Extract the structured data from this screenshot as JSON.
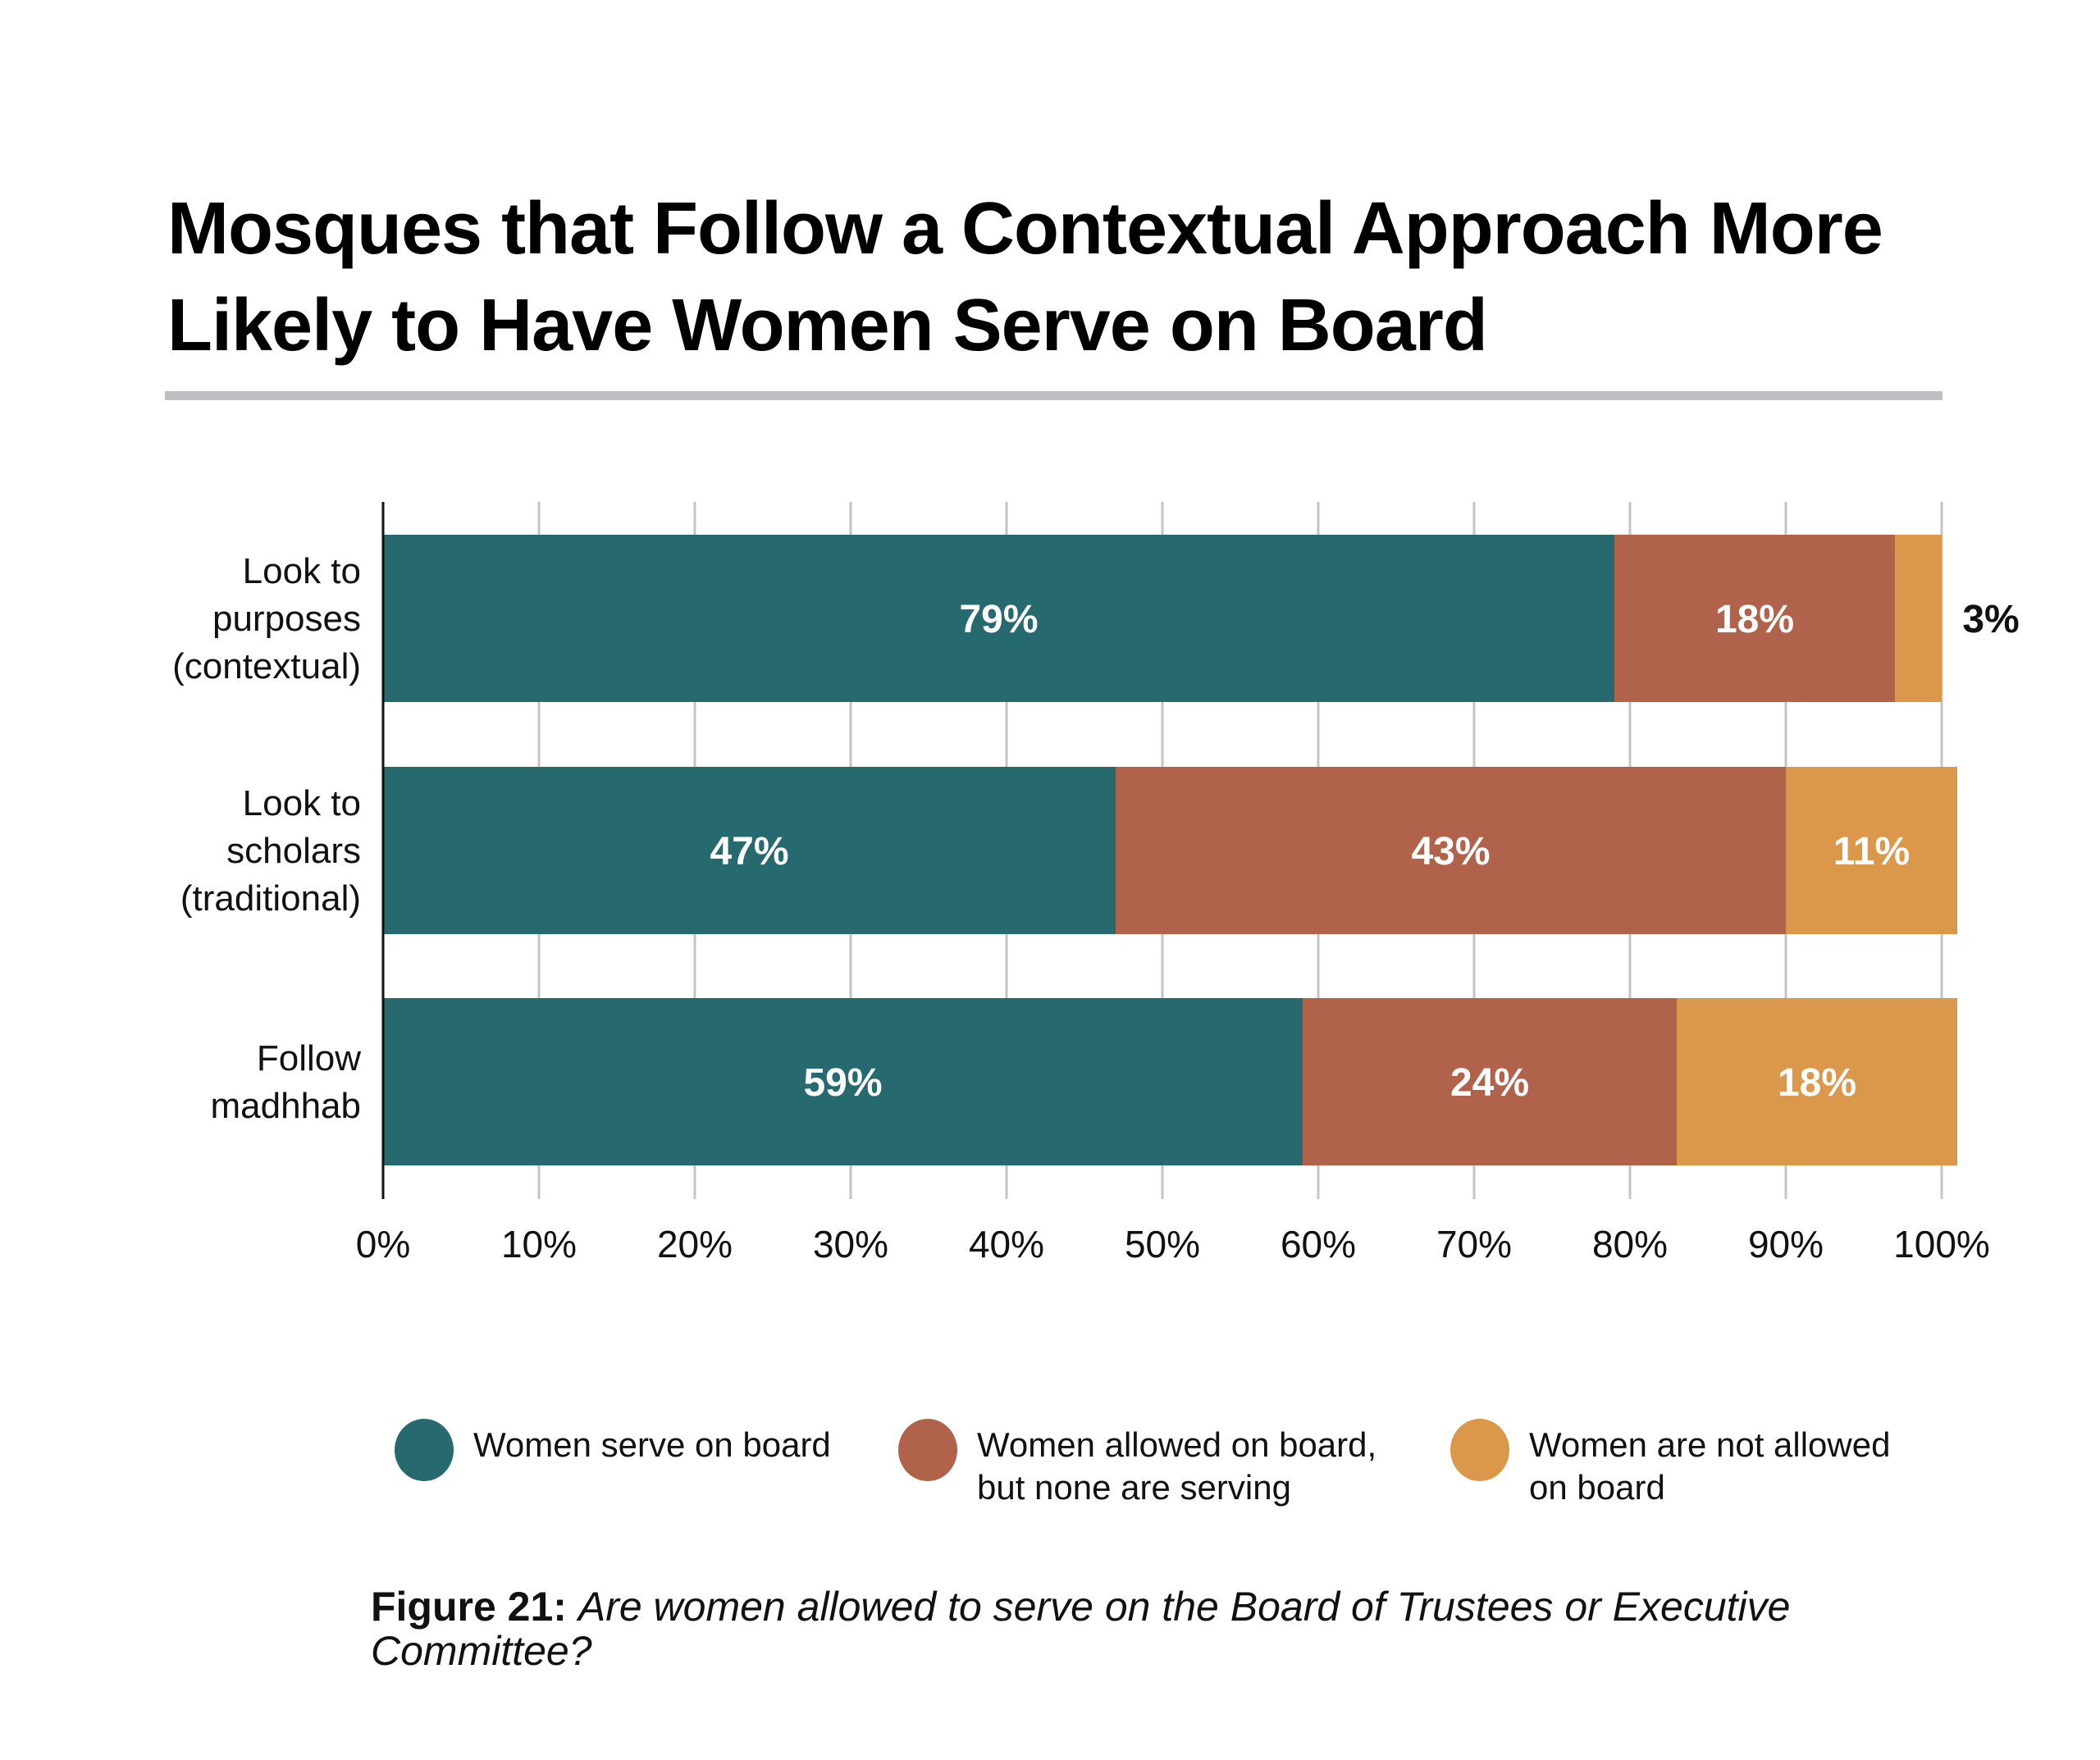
{
  "header": {
    "title_line1": "Mosques that Follow a Contextual Approach More",
    "title_line2": "Likely to Have Women Serve on Board"
  },
  "chart_data": {
    "type": "bar",
    "orientation": "horizontal",
    "stacked": true,
    "title": "Mosques that Follow a Contextual Approach More Likely to Have Women Serve on Board",
    "xlabel": "",
    "ylabel": "",
    "xlim": [
      0,
      100
    ],
    "grid": true,
    "legend_position": "bottom",
    "categories": [
      [
        "Look to",
        "purposes",
        "(contextual)"
      ],
      [
        "Look to",
        "scholars",
        "(traditional)"
      ],
      [
        "Follow",
        "madhhab"
      ]
    ],
    "x_ticks": [
      "0%",
      "10%",
      "20%",
      "30%",
      "40%",
      "50%",
      "60%",
      "70%",
      "80%",
      "90%",
      "100%"
    ],
    "series": [
      {
        "name": "Women serve on board",
        "color": "#266a6f",
        "values": [
          79,
          47,
          59
        ],
        "labels": [
          "79%",
          "47%",
          "59%"
        ]
      },
      {
        "name": "Women allowed on board, but none are serving",
        "color": "#b0634a",
        "values": [
          18,
          43,
          24
        ],
        "labels": [
          "18%",
          "43%",
          "24%"
        ]
      },
      {
        "name": "Women are not allowed on board",
        "color": "#db984b",
        "values": [
          3,
          11,
          18
        ],
        "labels": [
          "3%",
          "11%",
          "18%"
        ]
      }
    ]
  },
  "legend": {
    "items": [
      {
        "line1": "Women serve on board",
        "line2": "",
        "color": "#266a6f"
      },
      {
        "line1": "Women allowed on board,",
        "line2": "but none are serving",
        "color": "#b0634a"
      },
      {
        "line1": "Women are not allowed",
        "line2": "on board",
        "color": "#db984b"
      }
    ]
  },
  "caption": {
    "figure_label": "Figure 21:",
    "question": "Are women allowed to serve on the Board of Trustees or Executive Committee?"
  }
}
